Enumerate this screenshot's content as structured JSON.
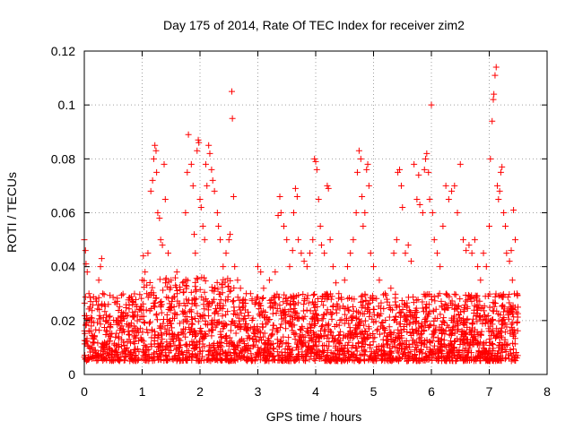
{
  "chart_data": {
    "type": "scatter",
    "title": "Day 175 of 2014, Rate Of TEC Index for receiver zim2",
    "xlabel": "GPS time / hours",
    "ylabel": "ROTI / TECUs",
    "xlim": [
      0,
      8
    ],
    "ylim": [
      0,
      0.12
    ],
    "xticks": [
      "0",
      "1",
      "2",
      "3",
      "4",
      "5",
      "6",
      "7",
      "8"
    ],
    "yticks": [
      "0",
      "0.02",
      "0.04",
      "0.06",
      "0.08",
      "0.1",
      "0.12"
    ],
    "grid": true,
    "marker": "plus",
    "color": "#ff0000",
    "series": [
      {
        "name": "zim2",
        "points": [
          [
            0.0,
            0.05
          ],
          [
            0.02,
            0.046
          ],
          [
            0.03,
            0.041
          ],
          [
            0.05,
            0.038
          ],
          [
            0.08,
            0.03
          ],
          [
            0.1,
            0.025
          ],
          [
            0.12,
            0.018
          ],
          [
            0.15,
            0.012
          ],
          [
            0.2,
            0.028
          ],
          [
            0.25,
            0.035
          ],
          [
            0.28,
            0.04
          ],
          [
            0.3,
            0.043
          ],
          [
            0.32,
            0.03
          ],
          [
            0.35,
            0.026
          ],
          [
            0.38,
            0.022
          ],
          [
            0.45,
            0.015
          ],
          [
            0.55,
            0.02
          ],
          [
            0.65,
            0.018
          ],
          [
            0.75,
            0.022
          ],
          [
            0.85,
            0.016
          ],
          [
            0.95,
            0.024
          ],
          [
            1.0,
            0.035
          ],
          [
            1.02,
            0.044
          ],
          [
            1.05,
            0.038
          ],
          [
            1.08,
            0.03
          ],
          [
            1.1,
            0.045
          ],
          [
            1.15,
            0.068
          ],
          [
            1.18,
            0.072
          ],
          [
            1.2,
            0.08
          ],
          [
            1.22,
            0.085
          ],
          [
            1.24,
            0.083
          ],
          [
            1.25,
            0.075
          ],
          [
            1.27,
            0.06
          ],
          [
            1.3,
            0.058
          ],
          [
            1.32,
            0.05
          ],
          [
            1.35,
            0.048
          ],
          [
            1.38,
            0.078
          ],
          [
            1.4,
            0.065
          ],
          [
            1.45,
            0.045
          ],
          [
            1.5,
            0.035
          ],
          [
            1.6,
            0.038
          ],
          [
            1.7,
            0.034
          ],
          [
            1.75,
            0.06
          ],
          [
            1.78,
            0.075
          ],
          [
            1.8,
            0.089
          ],
          [
            1.85,
            0.078
          ],
          [
            1.88,
            0.07
          ],
          [
            1.9,
            0.052
          ],
          [
            1.92,
            0.045
          ],
          [
            1.95,
            0.083
          ],
          [
            1.97,
            0.087
          ],
          [
            1.98,
            0.086
          ],
          [
            2.0,
            0.065
          ],
          [
            2.02,
            0.062
          ],
          [
            2.05,
            0.055
          ],
          [
            2.08,
            0.05
          ],
          [
            2.1,
            0.078
          ],
          [
            2.12,
            0.07
          ],
          [
            2.15,
            0.085
          ],
          [
            2.17,
            0.082
          ],
          [
            2.2,
            0.076
          ],
          [
            2.22,
            0.072
          ],
          [
            2.25,
            0.068
          ],
          [
            2.3,
            0.06
          ],
          [
            2.32,
            0.055
          ],
          [
            2.35,
            0.05
          ],
          [
            2.4,
            0.04
          ],
          [
            2.45,
            0.045
          ],
          [
            2.5,
            0.05
          ],
          [
            2.52,
            0.052
          ],
          [
            2.55,
            0.105
          ],
          [
            2.56,
            0.095
          ],
          [
            2.58,
            0.066
          ],
          [
            2.6,
            0.04
          ],
          [
            2.65,
            0.035
          ],
          [
            2.7,
            0.032
          ],
          [
            2.8,
            0.03
          ],
          [
            2.9,
            0.028
          ],
          [
            3.0,
            0.04
          ],
          [
            3.05,
            0.038
          ],
          [
            3.1,
            0.032
          ],
          [
            3.2,
            0.035
          ],
          [
            3.3,
            0.038
          ],
          [
            3.35,
            0.059
          ],
          [
            3.38,
            0.066
          ],
          [
            3.4,
            0.06
          ],
          [
            3.45,
            0.055
          ],
          [
            3.5,
            0.05
          ],
          [
            3.55,
            0.04
          ],
          [
            3.6,
            0.046
          ],
          [
            3.62,
            0.06
          ],
          [
            3.65,
            0.069
          ],
          [
            3.68,
            0.066
          ],
          [
            3.7,
            0.05
          ],
          [
            3.75,
            0.045
          ],
          [
            3.8,
            0.042
          ],
          [
            3.85,
            0.04
          ],
          [
            3.9,
            0.045
          ],
          [
            3.95,
            0.05
          ],
          [
            3.98,
            0.08
          ],
          [
            4.0,
            0.079
          ],
          [
            4.02,
            0.076
          ],
          [
            4.05,
            0.065
          ],
          [
            4.08,
            0.055
          ],
          [
            4.1,
            0.048
          ],
          [
            4.15,
            0.045
          ],
          [
            4.2,
            0.07
          ],
          [
            4.22,
            0.069
          ],
          [
            4.25,
            0.05
          ],
          [
            4.3,
            0.04
          ],
          [
            4.35,
            0.034
          ],
          [
            4.4,
            0.03
          ],
          [
            4.5,
            0.035
          ],
          [
            4.55,
            0.04
          ],
          [
            4.6,
            0.045
          ],
          [
            4.65,
            0.05
          ],
          [
            4.7,
            0.06
          ],
          [
            4.72,
            0.075
          ],
          [
            4.75,
            0.083
          ],
          [
            4.78,
            0.08
          ],
          [
            4.8,
            0.066
          ],
          [
            4.82,
            0.055
          ],
          [
            4.85,
            0.06
          ],
          [
            4.88,
            0.076
          ],
          [
            4.9,
            0.078
          ],
          [
            4.92,
            0.07
          ],
          [
            4.95,
            0.045
          ],
          [
            5.0,
            0.04
          ],
          [
            5.1,
            0.035
          ],
          [
            5.2,
            0.03
          ],
          [
            5.3,
            0.032
          ],
          [
            5.35,
            0.045
          ],
          [
            5.4,
            0.05
          ],
          [
            5.42,
            0.075
          ],
          [
            5.45,
            0.076
          ],
          [
            5.48,
            0.07
          ],
          [
            5.5,
            0.062
          ],
          [
            5.55,
            0.045
          ],
          [
            5.6,
            0.048
          ],
          [
            5.65,
            0.042
          ],
          [
            5.7,
            0.078
          ],
          [
            5.75,
            0.065
          ],
          [
            5.78,
            0.074
          ],
          [
            5.8,
            0.063
          ],
          [
            5.85,
            0.06
          ],
          [
            5.88,
            0.076
          ],
          [
            5.9,
            0.08
          ],
          [
            5.92,
            0.082
          ],
          [
            5.95,
            0.075
          ],
          [
            5.97,
            0.065
          ],
          [
            6.0,
            0.1
          ],
          [
            6.02,
            0.06
          ],
          [
            6.05,
            0.05
          ],
          [
            6.1,
            0.045
          ],
          [
            6.15,
            0.04
          ],
          [
            6.2,
            0.055
          ],
          [
            6.25,
            0.07
          ],
          [
            6.3,
            0.065
          ],
          [
            6.35,
            0.068
          ],
          [
            6.4,
            0.07
          ],
          [
            6.45,
            0.06
          ],
          [
            6.5,
            0.078
          ],
          [
            6.55,
            0.05
          ],
          [
            6.6,
            0.046
          ],
          [
            6.65,
            0.048
          ],
          [
            6.7,
            0.045
          ],
          [
            6.75,
            0.05
          ],
          [
            6.8,
            0.04
          ],
          [
            6.85,
            0.035
          ],
          [
            6.9,
            0.045
          ],
          [
            6.95,
            0.04
          ],
          [
            7.0,
            0.055
          ],
          [
            7.02,
            0.08
          ],
          [
            7.05,
            0.094
          ],
          [
            7.07,
            0.102
          ],
          [
            7.08,
            0.104
          ],
          [
            7.1,
            0.111
          ],
          [
            7.12,
            0.114
          ],
          [
            7.14,
            0.07
          ],
          [
            7.16,
            0.065
          ],
          [
            7.18,
            0.068
          ],
          [
            7.2,
            0.075
          ],
          [
            7.22,
            0.077
          ],
          [
            7.25,
            0.06
          ],
          [
            7.28,
            0.055
          ],
          [
            7.3,
            0.045
          ],
          [
            7.35,
            0.042
          ],
          [
            7.38,
            0.046
          ],
          [
            7.4,
            0.035
          ],
          [
            7.42,
            0.061
          ],
          [
            7.45,
            0.05
          ],
          [
            7.48,
            0.03
          ]
        ]
      }
    ],
    "baseline": {
      "description_of_band": "dense cloud of points between 0.005 and 0.030 across 0 to 7.5 hours",
      "x_start": 0.0,
      "x_end": 7.5,
      "y_min": 0.005,
      "y_max": 0.03,
      "count": 2600
    }
  }
}
